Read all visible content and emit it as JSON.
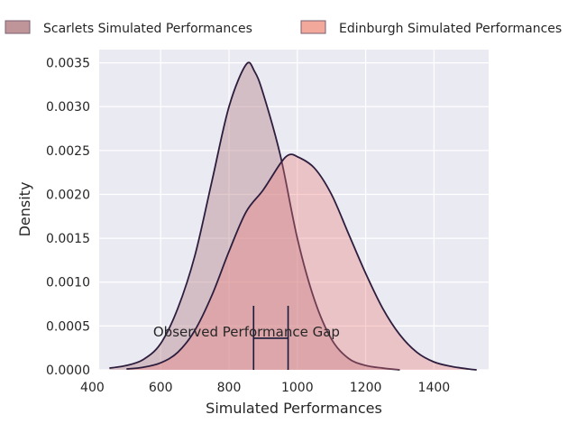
{
  "chart_data": {
    "type": "area",
    "title": "",
    "xlabel": "Simulated Performances",
    "ylabel": "Density",
    "xlim": [
      420,
      1560
    ],
    "ylim": [
      0,
      0.00365
    ],
    "xticks": [
      400,
      600,
      800,
      1000,
      1200,
      1400
    ],
    "xtick_labels": [
      "400",
      "600",
      "800",
      "1000",
      "1200",
      "1400"
    ],
    "yticks": [
      0,
      0.0005,
      0.001,
      0.0015,
      0.002,
      0.0025,
      0.003,
      0.0035
    ],
    "ytick_labels": [
      "0.0000",
      "0.0005",
      "0.0010",
      "0.0015",
      "0.0020",
      "0.0025",
      "0.0030",
      "0.0035"
    ],
    "grid": true,
    "background": "#eaeaf2",
    "line_color": "#2d1e3e",
    "legend": {
      "placement": "top-center-outside",
      "columns": 2
    },
    "series": [
      {
        "name": "Scarlets Simulated Performances",
        "fill": "#ba8a90",
        "fill_opacity": 0.45,
        "legend_fill": "#c0959a",
        "x": [
          450,
          500,
          550,
          600,
          650,
          700,
          750,
          800,
          850,
          875,
          900,
          950,
          1000,
          1050,
          1100,
          1150,
          1200,
          1250,
          1300
        ],
        "y": [
          2e-05,
          5e-05,
          0.00012,
          0.0003,
          0.0007,
          0.0013,
          0.00215,
          0.003,
          0.00348,
          0.0034,
          0.00315,
          0.00245,
          0.0015,
          0.0008,
          0.00035,
          0.00013,
          5e-05,
          2e-05,
          0.0
        ]
      },
      {
        "name": "Edinburgh Simulated Performances",
        "fill": "#ea7b78",
        "fill_opacity": 0.35,
        "legend_fill": "#f2a89a",
        "x": [
          500,
          550,
          600,
          650,
          700,
          750,
          800,
          850,
          900,
          950,
          975,
          1000,
          1050,
          1100,
          1150,
          1200,
          1250,
          1300,
          1350,
          1400,
          1450,
          1500,
          1525
        ],
        "y": [
          1e-05,
          3e-05,
          8e-05,
          0.0002,
          0.00045,
          0.00085,
          0.00135,
          0.0018,
          0.00205,
          0.00235,
          0.00245,
          0.00243,
          0.0023,
          0.002,
          0.00155,
          0.0011,
          0.0007,
          0.0004,
          0.0002,
          9e-05,
          4e-05,
          1e-05,
          0.0
        ]
      }
    ],
    "annotation": {
      "text": "Observed Performance Gap",
      "x_start": 872,
      "x_end": 973,
      "y_mid": 0.00036,
      "y_top": 0.00073,
      "y_bottom": 0.0,
      "line_color": "#1a1a3a"
    }
  }
}
